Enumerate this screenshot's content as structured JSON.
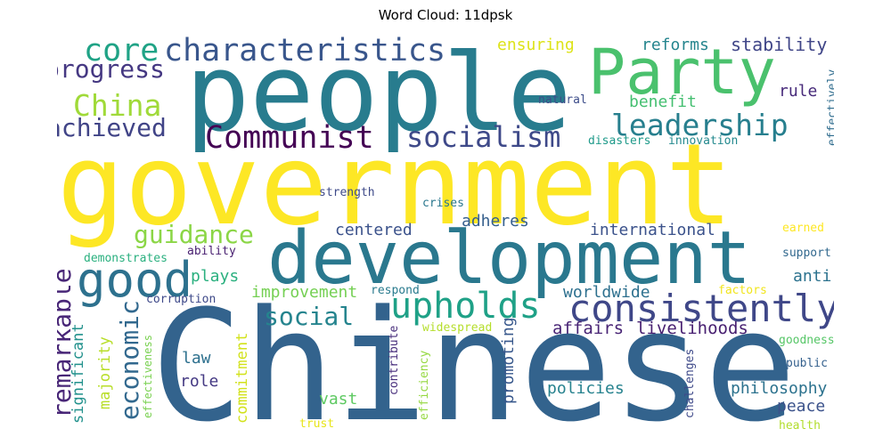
{
  "title": "Word Cloud: 11dpsk",
  "words": [
    {
      "text": "government",
      "color": "#fde725"
    },
    {
      "text": "Chinese",
      "color": "#33638d"
    },
    {
      "text": "people",
      "color": "#287c8e"
    },
    {
      "text": "development",
      "color": "#2a788e"
    },
    {
      "text": "Party",
      "color": "#4ac16d"
    },
    {
      "text": "good",
      "color": "#2d718e"
    },
    {
      "text": "characteristics",
      "color": "#39568c"
    },
    {
      "text": "core",
      "color": "#20a386"
    },
    {
      "text": "progress",
      "color": "#453882"
    },
    {
      "text": "China",
      "color": "#a0da39"
    },
    {
      "text": "achieved",
      "color": "#414487"
    },
    {
      "text": "Communist",
      "color": "#440154"
    },
    {
      "text": "leadership",
      "color": "#277f8e"
    },
    {
      "text": "socialism",
      "color": "#3e4989"
    },
    {
      "text": "consistently",
      "color": "#3f4788"
    },
    {
      "text": "upholds",
      "color": "#1fa187"
    },
    {
      "text": "guidance",
      "color": "#8bd646"
    },
    {
      "text": "social",
      "color": "#25848e"
    },
    {
      "text": "remarkable",
      "color": "#482677"
    },
    {
      "text": "economic",
      "color": "#31688e"
    },
    {
      "text": "centered",
      "color": "#3b528b"
    },
    {
      "text": "adheres",
      "color": "#355f8d"
    },
    {
      "text": "international",
      "color": "#3b528b"
    },
    {
      "text": "worldwide",
      "color": "#2d708e"
    },
    {
      "text": "improvement",
      "color": "#75d054"
    },
    {
      "text": "affairs",
      "color": "#482475"
    },
    {
      "text": "livelihoods",
      "color": "#482071"
    },
    {
      "text": "plays",
      "color": "#2ab07f"
    },
    {
      "text": "anti",
      "color": "#2c728e"
    },
    {
      "text": "law",
      "color": "#2d708e"
    },
    {
      "text": "role",
      "color": "#443983"
    },
    {
      "text": "vast",
      "color": "#5ec962"
    },
    {
      "text": "policies",
      "color": "#26828e"
    },
    {
      "text": "philosophy",
      "color": "#2c728e"
    },
    {
      "text": "peace",
      "color": "#3b528b"
    },
    {
      "text": "promoting",
      "color": "#38588c"
    },
    {
      "text": "commitment",
      "color": "#d2e21b"
    },
    {
      "text": "majority",
      "color": "#b8de29"
    },
    {
      "text": "significant",
      "color": "#21918c"
    },
    {
      "text": "effectiveness",
      "color": "#7ad151"
    },
    {
      "text": "corruption",
      "color": "#3e4989"
    },
    {
      "text": "demonstrates",
      "color": "#2ab07f"
    },
    {
      "text": "ability",
      "color": "#481f70"
    },
    {
      "text": "respond",
      "color": "#297b8e"
    },
    {
      "text": "widespread",
      "color": "#b5de2b"
    },
    {
      "text": "contribute",
      "color": "#472d7b"
    },
    {
      "text": "efficiency",
      "color": "#95d840"
    },
    {
      "text": "challenges",
      "color": "#3e4989"
    },
    {
      "text": "stability",
      "color": "#404688"
    },
    {
      "text": "reforms",
      "color": "#25858e"
    },
    {
      "text": "ensuring",
      "color": "#dde318"
    },
    {
      "text": "benefit",
      "color": "#44bf70"
    },
    {
      "text": "rule",
      "color": "#472a7a"
    },
    {
      "text": "natural",
      "color": "#3d4d8a"
    },
    {
      "text": "disasters",
      "color": "#1f9a8a"
    },
    {
      "text": "innovation",
      "color": "#23898e"
    },
    {
      "text": "effectively",
      "color": "#2f6c8e"
    },
    {
      "text": "strength",
      "color": "#3e4a89"
    },
    {
      "text": "crises",
      "color": "#2a778e"
    },
    {
      "text": "earned",
      "color": "#fde725"
    },
    {
      "text": "support",
      "color": "#31688e"
    },
    {
      "text": "factors",
      "color": "#f1e51d"
    },
    {
      "text": "goodness",
      "color": "#56c667"
    },
    {
      "text": "public",
      "color": "#34608d"
    },
    {
      "text": "health",
      "color": "#b2dd2d"
    },
    {
      "text": "trust",
      "color": "#e7e419"
    }
  ]
}
